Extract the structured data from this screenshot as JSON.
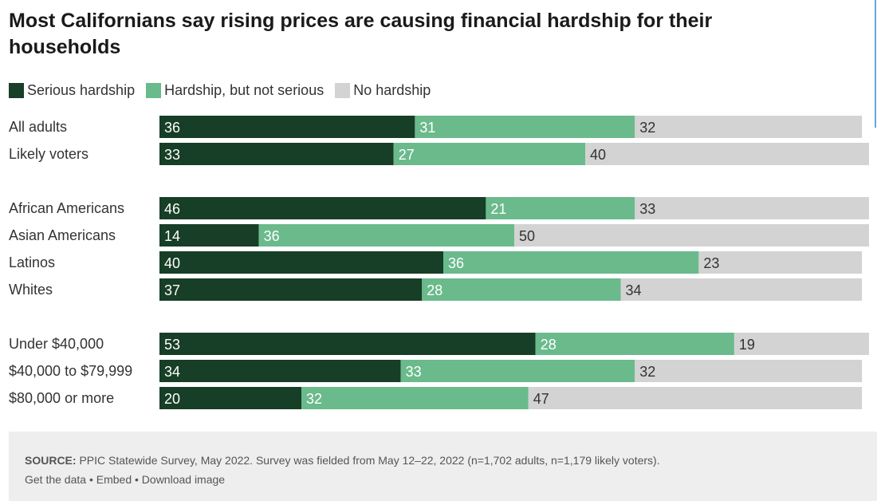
{
  "title": "Most Californians say rising prices are causing financial hardship for their households",
  "colors": {
    "serious": "#173e26",
    "not_serious": "#6aba8c",
    "none": "#d3d3d3",
    "label_on_dark": "#ffffff",
    "label_on_light": "#333333"
  },
  "chart_data": {
    "type": "bar",
    "orientation": "horizontal-stacked-100",
    "title": "Most Californians say rising prices are causing financial hardship for their households",
    "legend_position": "top-left",
    "xlim": [
      0,
      100
    ],
    "categories": [
      "All adults",
      "Likely voters",
      "African Americans",
      "Asian Americans",
      "Latinos",
      "Whites",
      "Under $40,000",
      "$40,000 to $79,999",
      "$80,000 or more"
    ],
    "groups": [
      [
        0,
        1
      ],
      [
        2,
        3,
        4,
        5
      ],
      [
        6,
        7,
        8
      ]
    ],
    "series": [
      {
        "name": "Serious hardship",
        "values": [
          36,
          33,
          46,
          14,
          40,
          37,
          53,
          34,
          20
        ]
      },
      {
        "name": "Hardship, but not serious",
        "values": [
          31,
          27,
          21,
          36,
          36,
          28,
          28,
          33,
          32
        ]
      },
      {
        "name": "No hardship",
        "values": [
          32,
          40,
          33,
          50,
          23,
          34,
          19,
          32,
          47
        ]
      }
    ]
  },
  "source": {
    "label": "SOURCE:",
    "text": "PPIC Statewide Survey, May 2022. Survey was fielded from May 12–22, 2022 (n=1,702 adults, n=1,179 likely voters).",
    "links": [
      "Get the data",
      "Embed",
      "Download image"
    ],
    "separator": "•"
  }
}
